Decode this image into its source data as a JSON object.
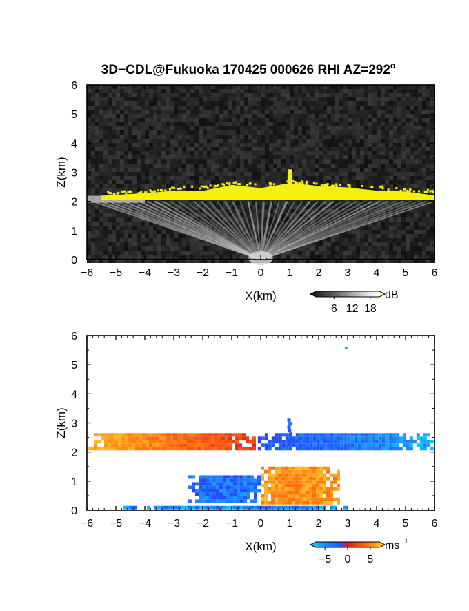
{
  "title": {
    "main": "3D−CDL@Fukuoka 170425 000626 RHI AZ=292",
    "degree": "o"
  },
  "colors": {
    "echo_yellow": "#f5ef10",
    "frame": "#000000",
    "noise_dark": "#2a2a2a",
    "warm_orange": "#ff8c1a",
    "cool_blue": "#1f5fff",
    "light_blue": "#3fb0ff"
  },
  "chart_data": [
    {
      "type": "heatmap",
      "name": "reflectivity",
      "xlabel": "X(km)",
      "ylabel": "Z(km)",
      "xlim": [
        -6,
        6
      ],
      "ylim": [
        0,
        6
      ],
      "xticks": [
        "−6",
        "−5",
        "−4",
        "−3",
        "−2",
        "−1",
        "0",
        "1",
        "2",
        "3",
        "4",
        "5",
        "6"
      ],
      "yticks": [
        "0",
        "1",
        "2",
        "3",
        "4",
        "5",
        "6"
      ],
      "colorbar": {
        "unit": "dB",
        "ticks": [
          "6",
          "12",
          "18"
        ],
        "range": [
          0,
          21
        ]
      },
      "grid": false,
      "layer_top_km": {
        "x": [
          -5.5,
          -4.0,
          -3.0,
          -2.0,
          -1.0,
          0.0,
          1.0,
          2.0,
          3.0,
          4.0,
          5.0,
          6.0
        ],
        "z": [
          2.2,
          2.25,
          2.35,
          2.4,
          2.55,
          2.5,
          2.6,
          2.5,
          2.45,
          2.4,
          2.3,
          2.25
        ]
      },
      "layer_base_km": 2.05,
      "spike": {
        "x": 1.0,
        "z_top": 3.1
      }
    },
    {
      "type": "heatmap",
      "name": "doppler_velocity",
      "xlabel": "X(km)",
      "ylabel": "Z(km)",
      "xlim": [
        -6,
        6
      ],
      "ylim": [
        0,
        6
      ],
      "xticks": [
        "−6",
        "−5",
        "−4",
        "−3",
        "−2",
        "−1",
        "0",
        "1",
        "2",
        "3",
        "4",
        "5",
        "6"
      ],
      "yticks": [
        "0",
        "1",
        "2",
        "3",
        "4",
        "5",
        "6"
      ],
      "colorbar": {
        "unit": "ms",
        "unit_exp": "−1",
        "ticks": [
          "−5",
          "0",
          "5"
        ],
        "range": [
          -7,
          7
        ]
      },
      "grid": false,
      "regions": [
        {
          "label": "upper layer west",
          "x": [
            -6.0,
            -0.1
          ],
          "z": [
            1.95,
            2.65
          ],
          "velocity": 4
        },
        {
          "label": "upper layer east",
          "x": [
            -0.1,
            6.0
          ],
          "z": [
            1.95,
            2.65
          ],
          "velocity": -3
        },
        {
          "label": "lower core east",
          "x": [
            0.0,
            2.8
          ],
          "z": [
            0.1,
            1.5
          ],
          "velocity": 4
        },
        {
          "label": "lower core west",
          "x": [
            -2.5,
            0.0
          ],
          "z": [
            0.2,
            1.2
          ],
          "velocity": -4
        },
        {
          "label": "surface band",
          "x": [
            -5.0,
            3.2
          ],
          "z": [
            0.0,
            0.15
          ],
          "velocity": -5
        }
      ],
      "isolated_point": {
        "x": 2.9,
        "z": 5.6,
        "velocity": -6
      }
    }
  ]
}
